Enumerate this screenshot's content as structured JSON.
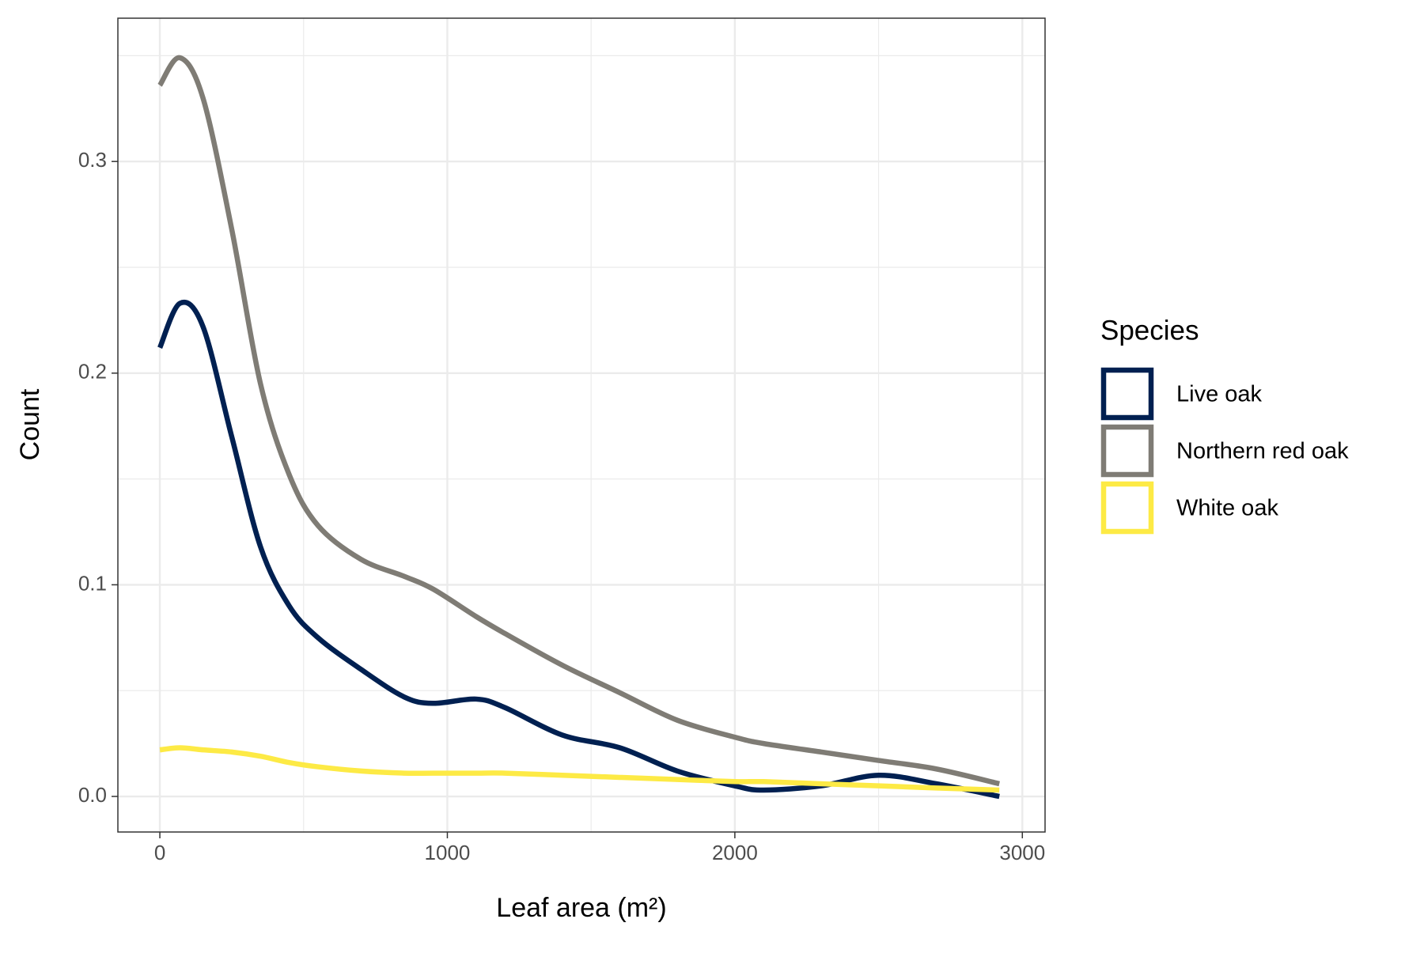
{
  "chart_data": {
    "type": "line",
    "xlabel": "Leaf area (m²)",
    "ylabel": "Count",
    "legend_title": "Species",
    "legend": "right",
    "grid": true,
    "x": [
      0,
      70,
      150,
      250,
      350,
      450,
      550,
      700,
      850,
      950,
      1100,
      1200,
      1400,
      1600,
      1800,
      2000,
      2100,
      2300,
      2500,
      2700,
      2920
    ],
    "series": [
      {
        "name": "Live oak",
        "color": "#002051",
        "values": [
          0.212,
          0.233,
          0.222,
          0.17,
          0.118,
          0.09,
          0.075,
          0.06,
          0.047,
          0.044,
          0.046,
          0.042,
          0.029,
          0.023,
          0.012,
          0.005,
          0.003,
          0.005,
          0.01,
          0.006,
          0.0
        ]
      },
      {
        "name": "Northern red oak",
        "color": "#7f7c75",
        "values": [
          0.336,
          0.349,
          0.33,
          0.268,
          0.195,
          0.152,
          0.128,
          0.112,
          0.104,
          0.098,
          0.085,
          0.077,
          0.062,
          0.049,
          0.036,
          0.028,
          0.025,
          0.021,
          0.017,
          0.013,
          0.006
        ]
      },
      {
        "name": "White oak",
        "color": "#fdea45",
        "values": [
          0.022,
          0.023,
          0.022,
          0.021,
          0.019,
          0.016,
          0.014,
          0.012,
          0.011,
          0.011,
          0.011,
          0.011,
          0.01,
          0.009,
          0.008,
          0.007,
          0.007,
          0.006,
          0.005,
          0.004,
          0.003
        ]
      }
    ],
    "xlim": [
      -146,
      3079
    ],
    "ylim": [
      -0.0168,
      0.3677
    ],
    "xticks": [
      0,
      1000,
      2000,
      3000
    ],
    "yticks": [
      {
        "value": 0,
        "label": "0.0"
      },
      0.1,
      0.2,
      0.3
    ],
    "xminor": [
      500,
      1500,
      2500
    ],
    "yminor": [
      0.05,
      0.15,
      0.25,
      0.35
    ]
  }
}
